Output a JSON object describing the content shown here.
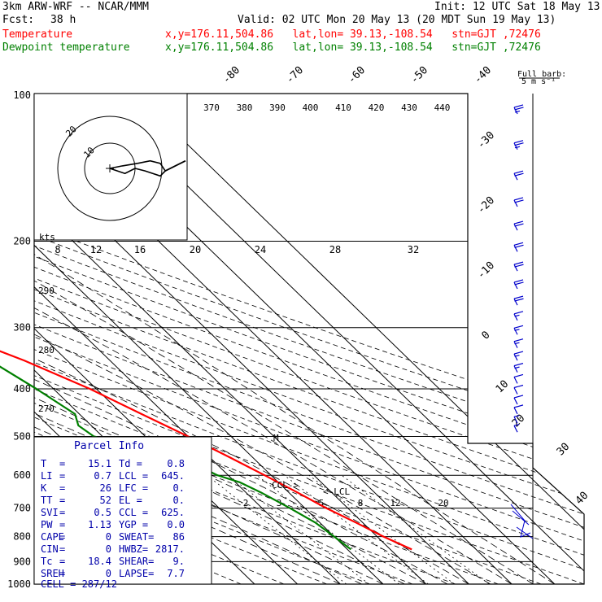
{
  "header": {
    "model": "3km ARW-WRF -- NCAR/MMM",
    "init": "Init: 12 UTC Sat 18 May 13",
    "fcst_label": "Fcst:",
    "fcst_value": "38 h",
    "valid": "Valid: 02 UTC Mon 20 May 13 (20 MDT Sun 19 May 13)"
  },
  "legend": [
    {
      "name": "Temperature",
      "location": "x,y=176.11,504.86   lat,lon= 39.13,-108.54   stn=GJT ,72476",
      "color": "#ff0000"
    },
    {
      "name": "Dewpoint temperature",
      "location": "x,y=176.11,504.86   lat,lon= 39.13,-108.54   stn=GJT ,72476",
      "color": "#008000"
    }
  ],
  "barb_key": {
    "title": "Full barb:",
    "value": "5 m s⁻¹"
  },
  "hodograph": {
    "kts": "kts",
    "ring_labels": [
      "10",
      "20"
    ]
  },
  "parcel_info": {
    "title": "Parcel Info",
    "rows": [
      {
        "l1": "T",
        "v1": "15.1",
        "l2": "Td =",
        "v2": "0.8"
      },
      {
        "l1": "LI",
        "v1": "0.7",
        "l2": "LCL =",
        "v2": "645."
      },
      {
        "l1": "K",
        "v1": "26",
        "l2": "LFC =",
        "v2": "0."
      },
      {
        "l1": "TT",
        "v1": "52",
        "l2": "EL  =",
        "v2": "0."
      },
      {
        "l1": "SVI",
        "v1": "0.5",
        "l2": "CCL =",
        "v2": "625."
      },
      {
        "l1": "PW",
        "v1": "1.13",
        "l2": "YGP =",
        "v2": "0.0"
      },
      {
        "l1": "CAPE",
        "v1": "0",
        "l2": "SWEAT=",
        "v2": "86"
      },
      {
        "l1": "CIN",
        "v1": "0",
        "l2": "HWBZ=",
        "v2": "2817."
      },
      {
        "l1": "Tc",
        "v1": "18.4",
        "l2": "SHEAR=",
        "v2": "9."
      },
      {
        "l1": "SREH",
        "v1": "0",
        "l2": "LAPSE=",
        "v2": "7.7"
      }
    ],
    "cell": "CELL = 287/12"
  },
  "chart_data": {
    "type": "line",
    "subtype": "skew-t log-p sounding",
    "pressure_levels": [
      100,
      200,
      300,
      400,
      500,
      600,
      700,
      800,
      900,
      1000
    ],
    "isotherm_labels": [
      -80,
      -70,
      -60,
      -50,
      -40,
      -30,
      -20,
      -10,
      0,
      10,
      20,
      30,
      40
    ],
    "theta_e_labels_upper": [
      370,
      380,
      390,
      400,
      410,
      420,
      430,
      440
    ],
    "mixing_ratio_labels_upper": [
      8,
      12,
      16,
      20,
      24,
      28,
      32
    ],
    "mixing_ratio_labels_lower": [
      2,
      3,
      5,
      8,
      12,
      20
    ],
    "dry_adiabat_labels": [
      290,
      280,
      270
    ],
    "annotations": [
      "CCL->",
      "<-LCL",
      "M"
    ],
    "series": [
      {
        "name": "Temperature",
        "color": "#ff0000",
        "points": [
          [
            850,
            15.0
          ],
          [
            800,
            11.5
          ],
          [
            750,
            8.5
          ],
          [
            700,
            5.0
          ],
          [
            650,
            2.0
          ],
          [
            600,
            -1.5
          ],
          [
            550,
            -5.5
          ],
          [
            500,
            -10.0
          ],
          [
            450,
            -15.5
          ],
          [
            400,
            -21.5
          ],
          [
            350,
            -30.0
          ],
          [
            320,
            -37.0
          ],
          [
            300,
            -41.0
          ],
          [
            280,
            -44.5
          ],
          [
            250,
            -47.5
          ],
          [
            220,
            -49.5
          ],
          [
            200,
            -51.0
          ],
          [
            180,
            -52.5
          ],
          [
            160,
            -54.5
          ],
          [
            140,
            -57.0
          ],
          [
            120,
            -59.5
          ],
          [
            110,
            -62.0
          ],
          [
            100,
            -64.5
          ]
        ]
      },
      {
        "name": "Dewpoint temperature",
        "color": "#008000",
        "points": [
          [
            850,
            0.8
          ],
          [
            800,
            0.0
          ],
          [
            750,
            -1.0
          ],
          [
            700,
            -3.5
          ],
          [
            650,
            -6.5
          ],
          [
            620,
            -9.0
          ],
          [
            600,
            -12.5
          ],
          [
            550,
            -17.0
          ],
          [
            500,
            -32.0
          ],
          [
            475,
            -33.0
          ],
          [
            450,
            -31.0
          ],
          [
            400,
            -34.0
          ],
          [
            350,
            -38.0
          ],
          [
            320,
            -42.0
          ],
          [
            300,
            -46.0
          ],
          [
            280,
            -56.0
          ],
          [
            260,
            -66.0
          ],
          [
            240,
            -68.0
          ],
          [
            220,
            -67.0
          ],
          [
            200,
            -68.0
          ],
          [
            180,
            -68.0
          ],
          [
            150,
            -72.0
          ],
          [
            125,
            -76.0
          ],
          [
            100,
            -79.5
          ]
        ]
      }
    ],
    "wind_barbs_kt": [
      {
        "p": 110,
        "speed": 25
      },
      {
        "p": 130,
        "speed": 25
      },
      {
        "p": 150,
        "speed": 20
      },
      {
        "p": 170,
        "speed": 20
      },
      {
        "p": 190,
        "speed": 20
      },
      {
        "p": 210,
        "speed": 20
      },
      {
        "p": 230,
        "speed": 20
      },
      {
        "p": 250,
        "speed": 20
      },
      {
        "p": 270,
        "speed": 20
      },
      {
        "p": 290,
        "speed": 15
      },
      {
        "p": 310,
        "speed": 15
      },
      {
        "p": 330,
        "speed": 15
      },
      {
        "p": 350,
        "speed": 15
      },
      {
        "p": 370,
        "speed": 15
      },
      {
        "p": 390,
        "speed": 10
      },
      {
        "p": 410,
        "speed": 10
      },
      {
        "p": 430,
        "speed": 10
      },
      {
        "p": 450,
        "speed": 10
      },
      {
        "p": 470,
        "speed": 5
      },
      {
        "p": 490,
        "speed": 5
      }
    ],
    "hodograph_trace_kt": [
      [
        0,
        0
      ],
      [
        5,
        1
      ],
      [
        11,
        2
      ],
      [
        16,
        3
      ],
      [
        20,
        2
      ],
      [
        22,
        -1
      ],
      [
        20,
        -3
      ],
      [
        14,
        -1
      ],
      [
        10,
        0
      ],
      [
        6,
        -2
      ],
      [
        3,
        -1
      ],
      [
        0,
        0
      ]
    ]
  }
}
